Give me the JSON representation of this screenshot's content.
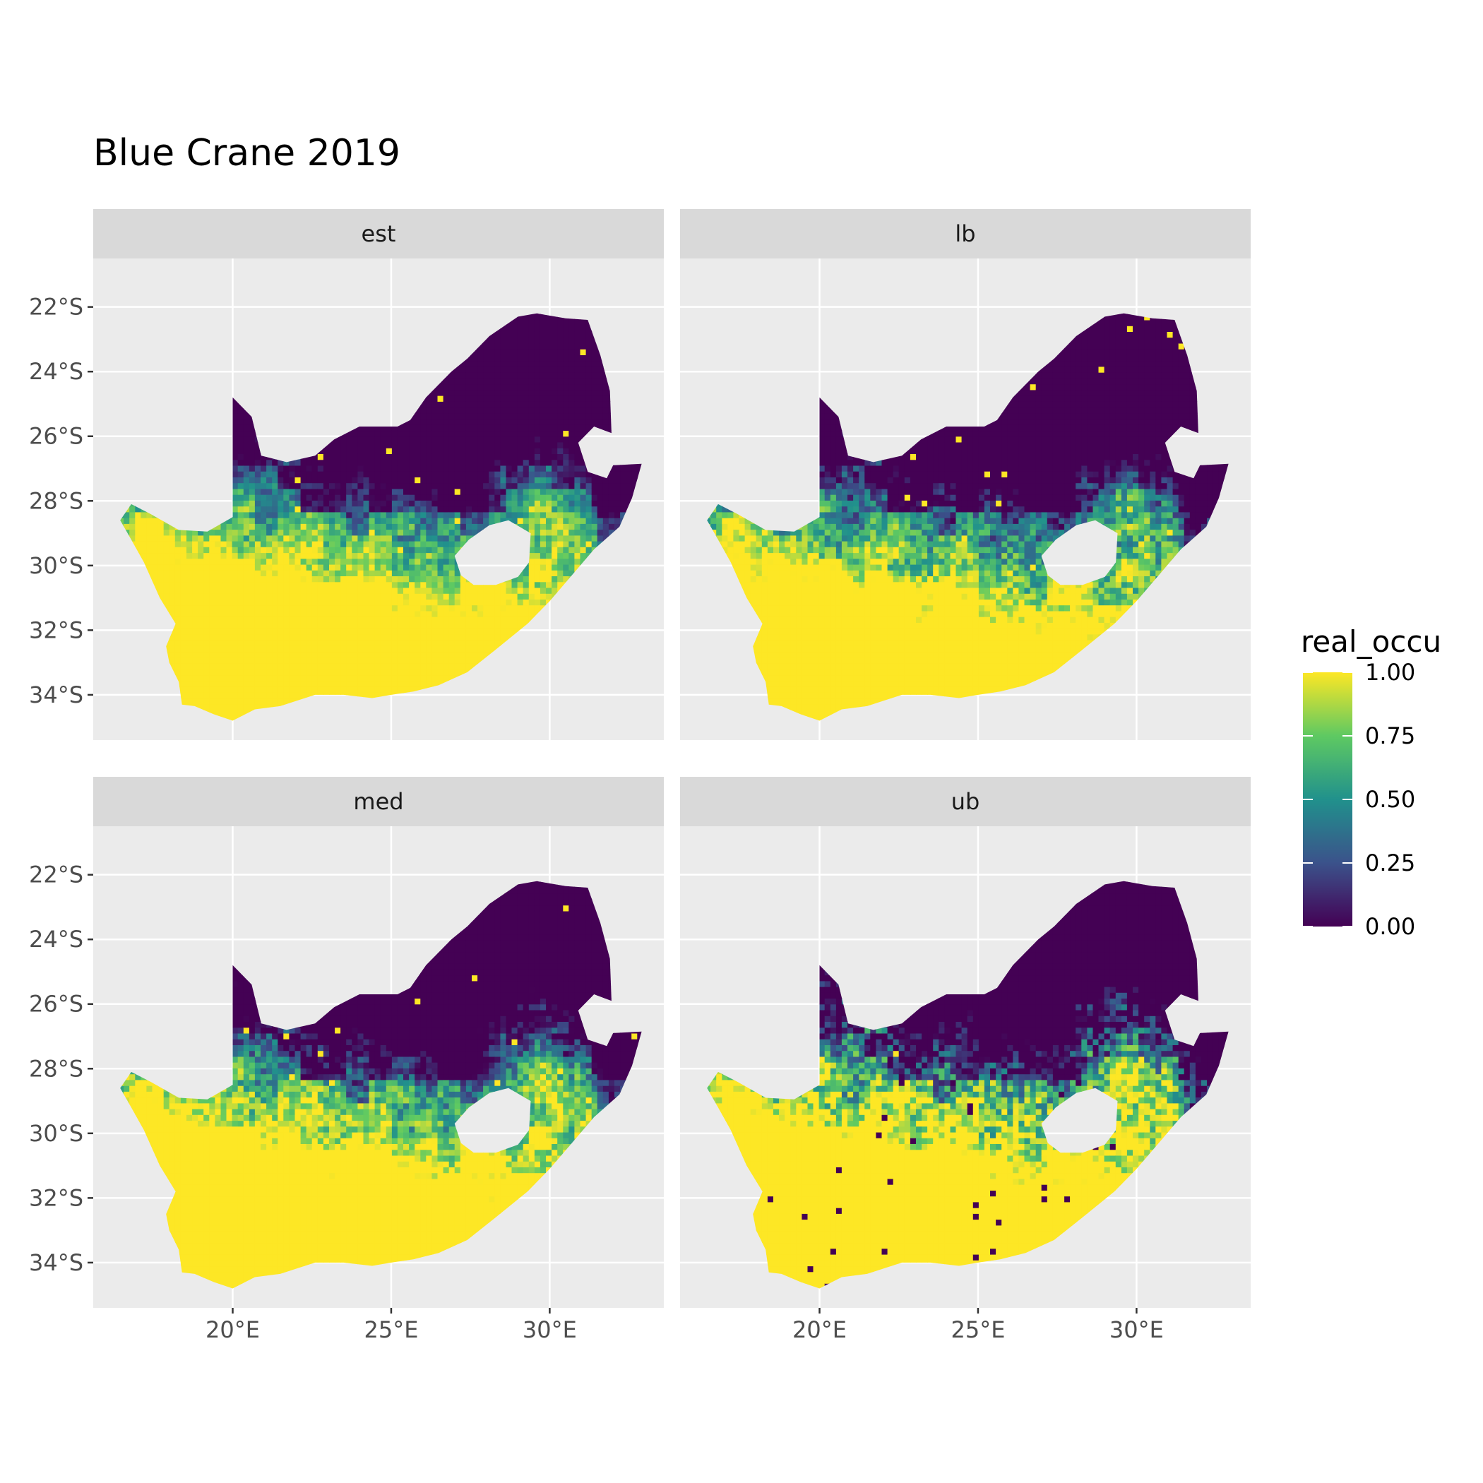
{
  "title": "Blue Crane 2019",
  "chart_data": {
    "type": "heatmap",
    "title": "Blue Crane 2019",
    "facets": [
      "est",
      "lb",
      "med",
      "ub"
    ],
    "x_ticks": [
      "20°E",
      "25°E",
      "30°E"
    ],
    "x_tick_values": [
      20,
      25,
      30
    ],
    "y_ticks": [
      "22°S",
      "24°S",
      "26°S",
      "28°S",
      "30°S",
      "32°S",
      "34°S"
    ],
    "y_tick_values": [
      -22,
      -24,
      -26,
      -28,
      -30,
      -32,
      -34
    ],
    "xlim": [
      15.6,
      33.6
    ],
    "ylim": [
      -35.4,
      -20.5
    ],
    "grid": true,
    "legend": {
      "title": "real_occu",
      "position": "right",
      "labels": [
        "1.00",
        "0.75",
        "0.50",
        "0.25",
        "0.00"
      ],
      "values": [
        1.0,
        0.75,
        0.5,
        0.25,
        0.0
      ],
      "colormap": [
        "#440154",
        "#3b528b",
        "#21918c",
        "#5ec962",
        "#fde725"
      ]
    },
    "region": "South Africa",
    "pattern": "high occupancy (yellow) across the western and southern Cape and the eastern escarpment; low occupancy (dark purple) across the northern interior; Lesotho blank"
  },
  "colors": {
    "panel_bg": "#ebebeb",
    "strip_bg": "#d9d9d9",
    "grid": "#ffffff",
    "tick_text": "#4d4d4d"
  }
}
